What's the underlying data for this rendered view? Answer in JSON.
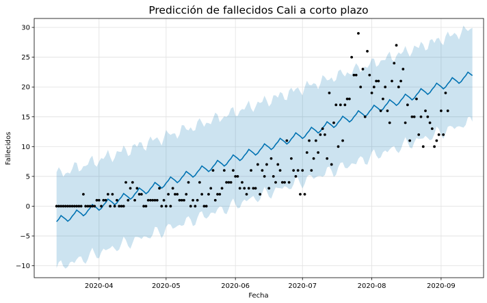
{
  "chart_data": {
    "type": "line",
    "title": "Predicción de fallecidos Cali a corto plazo",
    "xlabel": "Fecha",
    "ylabel": "Fallecidos",
    "grid": true,
    "ylim": [
      -12,
      31.5
    ],
    "xlim": [
      "2020-03-03",
      "2020-09-20"
    ],
    "x_ticks": [
      {
        "date": "2020-04-01",
        "label": "2020-04"
      },
      {
        "date": "2020-05-01",
        "label": "2020-05"
      },
      {
        "date": "2020-06-01",
        "label": "2020-06"
      },
      {
        "date": "2020-07-01",
        "label": "2020-07"
      },
      {
        "date": "2020-08-01",
        "label": "2020-08"
      },
      {
        "date": "2020-09-01",
        "label": "2020-09"
      }
    ],
    "y_ticks": [
      -10,
      -5,
      0,
      5,
      10,
      15,
      20,
      25,
      30
    ],
    "forecast": {
      "start": "2020-03-13",
      "end": "2020-09-15",
      "start_value": -2.6,
      "end_value": 22.0,
      "weekly_amplitude": 0.6,
      "interval_half_width": 7.8,
      "line_color": "#0072B2",
      "band_color": "#0072B2"
    },
    "observations": {
      "start": "2020-03-13",
      "color": "#000000",
      "daily_values": [
        0,
        0,
        0,
        0,
        0,
        0,
        0,
        0,
        0,
        0,
        0,
        0,
        2,
        0,
        0,
        0,
        0,
        0,
        1,
        1,
        0,
        1,
        1,
        2,
        0,
        2,
        0,
        1,
        0,
        0,
        0,
        4,
        1,
        3,
        4,
        1,
        3,
        2,
        2,
        0,
        0,
        1,
        1,
        1,
        1,
        1,
        3,
        0,
        1,
        0,
        2,
        0,
        3,
        2,
        2,
        1,
        1,
        1,
        2,
        4,
        0,
        1,
        0,
        1,
        4,
        2,
        0,
        0,
        2,
        3,
        6,
        1,
        2,
        2,
        3,
        6,
        4,
        4,
        4,
        6,
        5,
        5,
        3,
        4,
        3,
        2,
        3,
        6,
        3,
        3,
        7,
        2,
        6,
        5,
        7,
        3,
        8,
        5,
        4,
        7,
        6,
        4,
        4,
        11,
        4,
        8,
        6,
        5,
        6,
        2,
        6,
        2,
        9,
        11,
        6,
        8,
        11,
        9,
        12,
        13,
        12,
        8,
        19,
        7,
        14,
        17,
        10,
        17,
        11,
        17,
        18,
        18,
        25,
        22,
        22,
        29,
        20,
        23,
        15,
        26,
        22,
        19,
        20,
        21,
        21,
        16,
        18,
        20,
        16,
        14,
        21,
        24,
        27,
        20,
        21,
        23,
        14,
        17,
        11,
        15,
        15,
        18,
        12,
        15,
        10,
        16,
        15,
        14,
        13,
        10,
        11,
        12,
        16,
        12,
        19,
        16
      ]
    }
  }
}
